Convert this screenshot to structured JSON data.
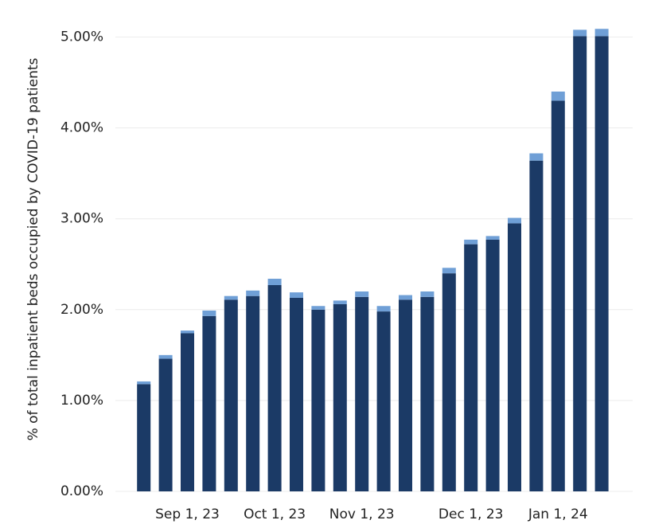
{
  "chart_data": {
    "type": "stacked-bar",
    "y_label": "% of total inpatient beds occupied by COVID-19 patients",
    "categories": [
      null,
      null,
      "Sep 1, 23",
      null,
      null,
      null,
      "Oct 1, 23",
      null,
      null,
      null,
      "Nov 1, 23",
      null,
      null,
      null,
      null,
      "Dec 1, 23",
      null,
      null,
      null,
      "Jan 1, 24",
      null,
      null
    ],
    "series": [
      {
        "color": "#1b3a66",
        "values": [
          1.18,
          1.46,
          1.74,
          1.93,
          2.11,
          2.15,
          2.27,
          2.13,
          2.0,
          2.06,
          2.14,
          1.98,
          2.11,
          2.14,
          2.4,
          2.72,
          2.77,
          2.95,
          3.64,
          4.3,
          5.01,
          5.01
        ]
      },
      {
        "color": "#6f9fd6",
        "values": [
          0.03,
          0.04,
          0.03,
          0.06,
          0.04,
          0.06,
          0.07,
          0.06,
          0.04,
          0.04,
          0.06,
          0.06,
          0.05,
          0.06,
          0.06,
          0.05,
          0.04,
          0.06,
          0.08,
          0.1,
          0.07,
          0.08
        ]
      }
    ],
    "ylim": [
      0,
      5.32
    ],
    "yticks": [
      {
        "value": 0,
        "label": "0.00%"
      },
      {
        "value": 1,
        "label": "1.00%"
      },
      {
        "value": 2,
        "label": "2.00%"
      },
      {
        "value": 3,
        "label": "3.00%"
      },
      {
        "value": 4,
        "label": "4.00%"
      },
      {
        "value": 5,
        "label": "5.00%"
      }
    ],
    "grid": true
  }
}
